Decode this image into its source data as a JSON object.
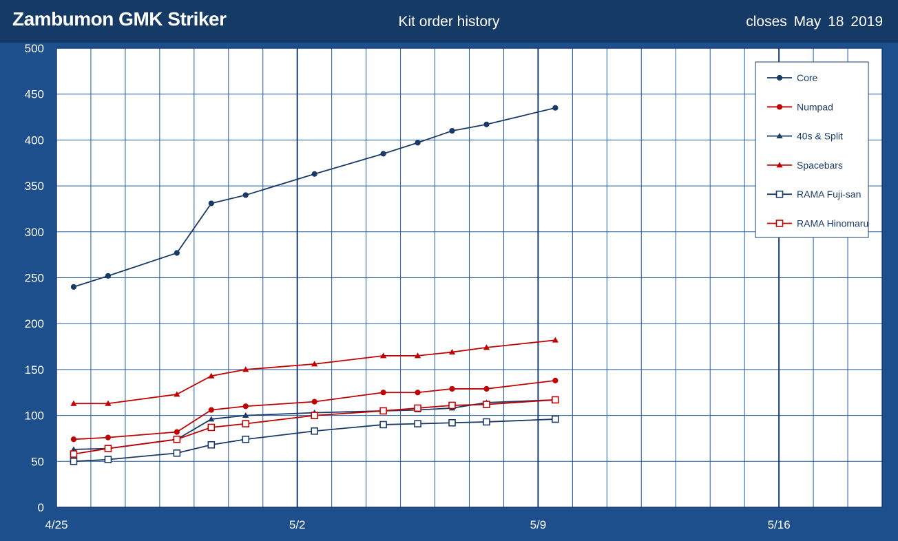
{
  "header": {
    "title": "Zambumon GMK Striker",
    "subtitle": "Kit order history",
    "closes": "closes  May 18  2019"
  },
  "colors": {
    "navy": "#1a3a66",
    "red": "#c00000",
    "header_bg": "#163a66",
    "frame_bg": "#1d4f8c",
    "grid": "#1f5aa0"
  },
  "chart_data": {
    "type": "line",
    "title": "Kit order history",
    "x_tick_labels": [
      "4/25",
      "5/2",
      "5/9",
      "5/16"
    ],
    "x_tick_days": [
      0,
      7,
      14,
      21
    ],
    "xlim_days": [
      0,
      24
    ],
    "x_origin_date": "4/25",
    "ylim": [
      0,
      500
    ],
    "y_ticks": [
      0,
      50,
      100,
      150,
      200,
      250,
      300,
      350,
      400,
      450,
      500
    ],
    "grid": true,
    "legend_position": "top-right",
    "series": [
      {
        "name": "Core",
        "color": "#1a3a66",
        "marker": "circle",
        "filled": true,
        "x": [
          "4/25",
          "4/26",
          "4/28",
          "4/29",
          "4/30",
          "5/2",
          "5/4",
          "5/5",
          "5/6",
          "5/7",
          "5/9"
        ],
        "x_days": [
          0.5,
          1.5,
          3.5,
          4.5,
          5.5,
          7.5,
          9.5,
          10.5,
          11.5,
          12.5,
          14.5
        ],
        "values": [
          240,
          252,
          277,
          331,
          340,
          363,
          385,
          397,
          410,
          417,
          435
        ]
      },
      {
        "name": "Numpad",
        "color": "#c00000",
        "marker": "circle",
        "filled": true,
        "x_days": [
          0.5,
          1.5,
          3.5,
          4.5,
          5.5,
          7.5,
          9.5,
          10.5,
          11.5,
          12.5,
          14.5
        ],
        "values": [
          74,
          76,
          82,
          106,
          110,
          115,
          125,
          125,
          129,
          129,
          138
        ]
      },
      {
        "name": "40s & Split",
        "color": "#1a3a66",
        "marker": "triangle",
        "filled": true,
        "x_days": [
          0.5,
          1.5,
          3.5,
          4.5,
          5.5,
          7.5,
          9.5,
          10.5,
          11.5,
          12.5,
          14.5
        ],
        "values": [
          63,
          64,
          74,
          96,
          100,
          103,
          105,
          106,
          108,
          114,
          117
        ]
      },
      {
        "name": "Spacebars",
        "color": "#c00000",
        "marker": "triangle",
        "filled": true,
        "x_days": [
          0.5,
          1.5,
          3.5,
          4.5,
          5.5,
          7.5,
          9.5,
          10.5,
          11.5,
          12.5,
          14.5
        ],
        "values": [
          113,
          113,
          123,
          143,
          150,
          156,
          165,
          165,
          169,
          174,
          182
        ]
      },
      {
        "name": "RAMA Fuji-san",
        "color": "#1a3a66",
        "marker": "square",
        "filled": false,
        "x_days": [
          0.5,
          1.5,
          3.5,
          4.5,
          5.5,
          7.5,
          9.5,
          10.5,
          11.5,
          12.5,
          14.5
        ],
        "values": [
          50,
          52,
          59,
          68,
          74,
          83,
          90,
          91,
          92,
          93,
          96
        ]
      },
      {
        "name": "RAMA Hinomaru",
        "color": "#c00000",
        "marker": "square",
        "filled": false,
        "x_days": [
          0.5,
          1.5,
          3.5,
          4.5,
          5.5,
          7.5,
          9.5,
          10.5,
          11.5,
          12.5,
          14.5
        ],
        "values": [
          58,
          64,
          74,
          87,
          91,
          100,
          105,
          108,
          111,
          112,
          117
        ]
      }
    ]
  }
}
